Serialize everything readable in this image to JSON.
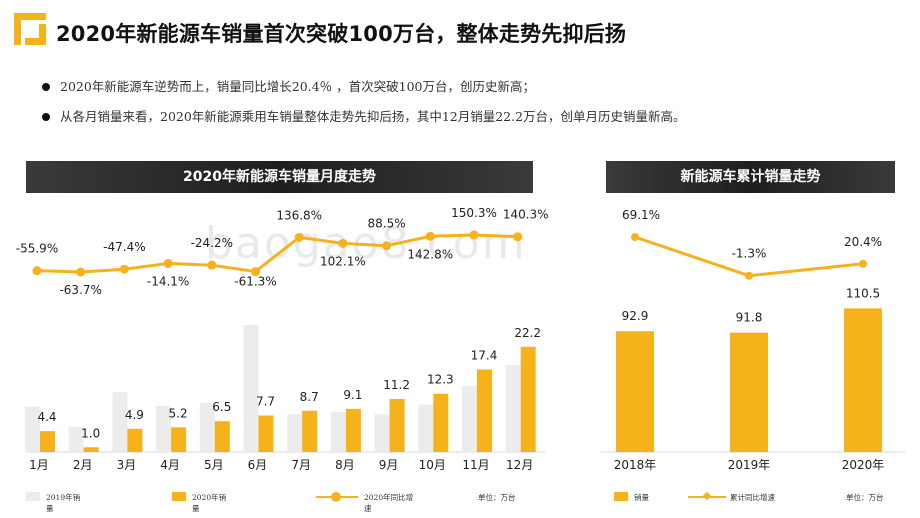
{
  "page": {
    "title": "2020年新能源车销量首次突破100万台，整体走势先抑后扬",
    "bullets": [
      "2020年新能源车逆势而上，销量同比增长20.4％ ，首次突破100万台，创历史新高；",
      "从各月销量来看，2020年新能源乘用车销量整体走势先抑后扬，其中12月销量22.2万台，创单月历史销量新高。"
    ],
    "watermark": "baogao8.com"
  },
  "colors": {
    "accent": "#f5b21b",
    "bar2019": "#ececec",
    "banner": "#2a2a2a"
  },
  "icons": {
    "logo": "orange-corner-logo-icon"
  },
  "chart_data": [
    {
      "type": "bar",
      "title": "2020年新能源车销量月度走势",
      "categories": [
        "1月",
        "2月",
        "3月",
        "4月",
        "5月",
        "6月",
        "7月",
        "8月",
        "9月",
        "10月",
        "11月",
        "12月"
      ],
      "series": [
        {
          "name": "2019年销量",
          "values": [
            9.6,
            5.3,
            12.6,
            9.7,
            10.4,
            26.8,
            8.0,
            8.5,
            8.0,
            10.0,
            14.0,
            18.3
          ]
        },
        {
          "name": "2020年销量",
          "values": [
            4.4,
            1.0,
            4.9,
            5.2,
            6.5,
            7.7,
            8.7,
            9.1,
            11.2,
            12.3,
            17.4,
            22.2
          ]
        },
        {
          "name": "2020年同比增速",
          "values": [
            -55.9,
            -63.7,
            -47.4,
            -14.1,
            -24.2,
            -61.3,
            136.8,
            102.1,
            88.5,
            142.8,
            150.3,
            140.3
          ],
          "labels": [
            "-55.9%",
            "-63.7%",
            "-47.4%",
            "-14.1%",
            "-24.2%",
            "-61.3%",
            "136.8%",
            "102.1%",
            "88.5%",
            "142.8%",
            "150.3%",
            "140.3%"
          ]
        }
      ],
      "legend": [
        {
          "text": "2019年销\n量"
        },
        {
          "text": "2020年销\n量"
        },
        {
          "text": "2020年同比增\n速"
        }
      ],
      "unit": "单位：万台",
      "ylim": [
        0,
        30
      ]
    },
    {
      "type": "bar",
      "title": "新能源车累计销量走势",
      "categories": [
        "2018年",
        "2019年",
        "2020年"
      ],
      "series": [
        {
          "name": "销量",
          "values": [
            92.9,
            91.8,
            110.5
          ]
        },
        {
          "name": "累计同比增速",
          "values": [
            69.1,
            -1.3,
            20.4
          ],
          "labels": [
            "69.1%",
            "-1.3%",
            "20.4%"
          ]
        }
      ],
      "legend": [
        {
          "text": "销量"
        },
        {
          "text": "累计同比增速"
        }
      ],
      "unit": "单位：万台",
      "ylim": [
        0,
        150
      ]
    }
  ]
}
